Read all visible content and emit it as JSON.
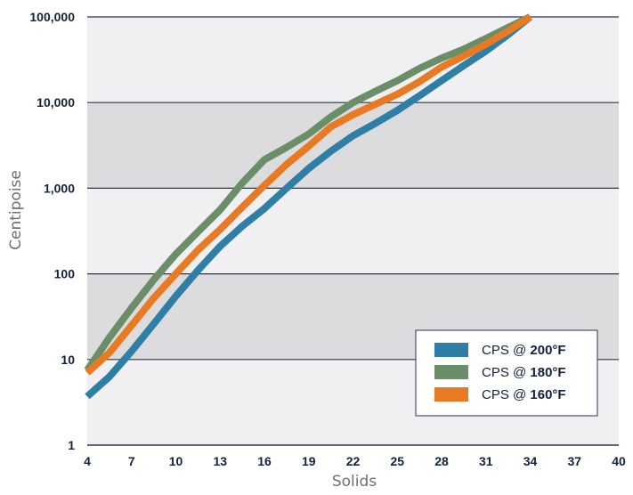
{
  "chart_data": {
    "type": "line",
    "title": "",
    "xlabel": "Solids",
    "ylabel": "Centipoise",
    "xlim": [
      4,
      40
    ],
    "ylim": [
      1,
      100000
    ],
    "yscale": "log",
    "xticks": [
      "4",
      "7",
      "10",
      "13",
      "16",
      "19",
      "22",
      "25",
      "28",
      "31",
      "34",
      "37",
      "40"
    ],
    "yticks": [
      "1",
      "10",
      "100",
      "1,000",
      "10,000",
      "100,000"
    ],
    "grid": "horizontal, alternating light and dark bands",
    "legend_position": "bottom-right",
    "series": [
      {
        "name": "CPS @ 200°F",
        "label_prefix": "CPS @ ",
        "label_temp": "200°F",
        "color": "#2f7ea6",
        "x": [
          4,
          5.5,
          7,
          8.5,
          10,
          11.5,
          13,
          14.5,
          16,
          17.5,
          19,
          20.5,
          22,
          23.5,
          25,
          26.5,
          28,
          29.5,
          31,
          32.5,
          34
        ],
        "y": [
          3.7,
          6.3,
          12.5,
          26,
          55,
          110,
          210,
          360,
          580,
          1000,
          1700,
          2700,
          4100,
          5700,
          8100,
          12000,
          18000,
          27000,
          40000,
          62000,
          100000
        ]
      },
      {
        "name": "CPS @ 180°F",
        "label_prefix": "CPS @ ",
        "label_temp": "180°F",
        "color": "#6a8e68",
        "x": [
          4,
          5.5,
          7,
          8.5,
          10,
          11.5,
          13,
          14.5,
          16,
          17.5,
          19,
          20.5,
          22,
          23.5,
          25,
          26.5,
          28,
          29.5,
          31,
          32.5,
          34
        ],
        "y": [
          7.5,
          18,
          40,
          85,
          170,
          310,
          560,
          1150,
          2150,
          3000,
          4300,
          6800,
          10000,
          13500,
          18000,
          25000,
          33000,
          42000,
          56000,
          75000,
          100000
        ]
      },
      {
        "name": "CPS @ 160°F",
        "label_prefix": "CPS @ ",
        "label_temp": "160°F",
        "color": "#e87a24",
        "x": [
          4,
          5.5,
          7,
          8.5,
          10,
          11.5,
          13,
          14.5,
          16,
          17.5,
          19,
          20.5,
          22,
          23.5,
          25,
          26.5,
          28,
          29.5,
          31,
          32.5,
          34
        ],
        "y": [
          7,
          12,
          25,
          52,
          100,
          190,
          330,
          600,
          1080,
          1900,
          3100,
          5200,
          7200,
          9500,
          12500,
          17500,
          26000,
          35000,
          48000,
          68000,
          100000
        ]
      }
    ]
  }
}
